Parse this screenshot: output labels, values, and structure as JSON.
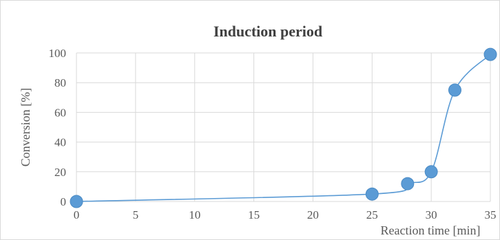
{
  "chart_data": {
    "type": "line",
    "title": "Induction period",
    "xlabel": "Reaction time [min]",
    "ylabel": "Conversion [%]",
    "x": [
      0,
      25,
      28,
      30,
      32,
      35
    ],
    "series": [
      {
        "values": [
          0,
          5,
          12,
          20,
          75,
          99
        ]
      }
    ],
    "xlim": [
      0,
      35
    ],
    "ylim": [
      0,
      100
    ],
    "xticks": [
      0,
      5,
      10,
      15,
      20,
      25,
      30,
      35
    ],
    "yticks": [
      0,
      20,
      40,
      60,
      80,
      100
    ],
    "grid": true,
    "smooth": true,
    "legend": "none",
    "colors": {
      "line": "#5b9bd5",
      "marker": "#5b9bd5",
      "grid": "#d9d9d9"
    }
  }
}
